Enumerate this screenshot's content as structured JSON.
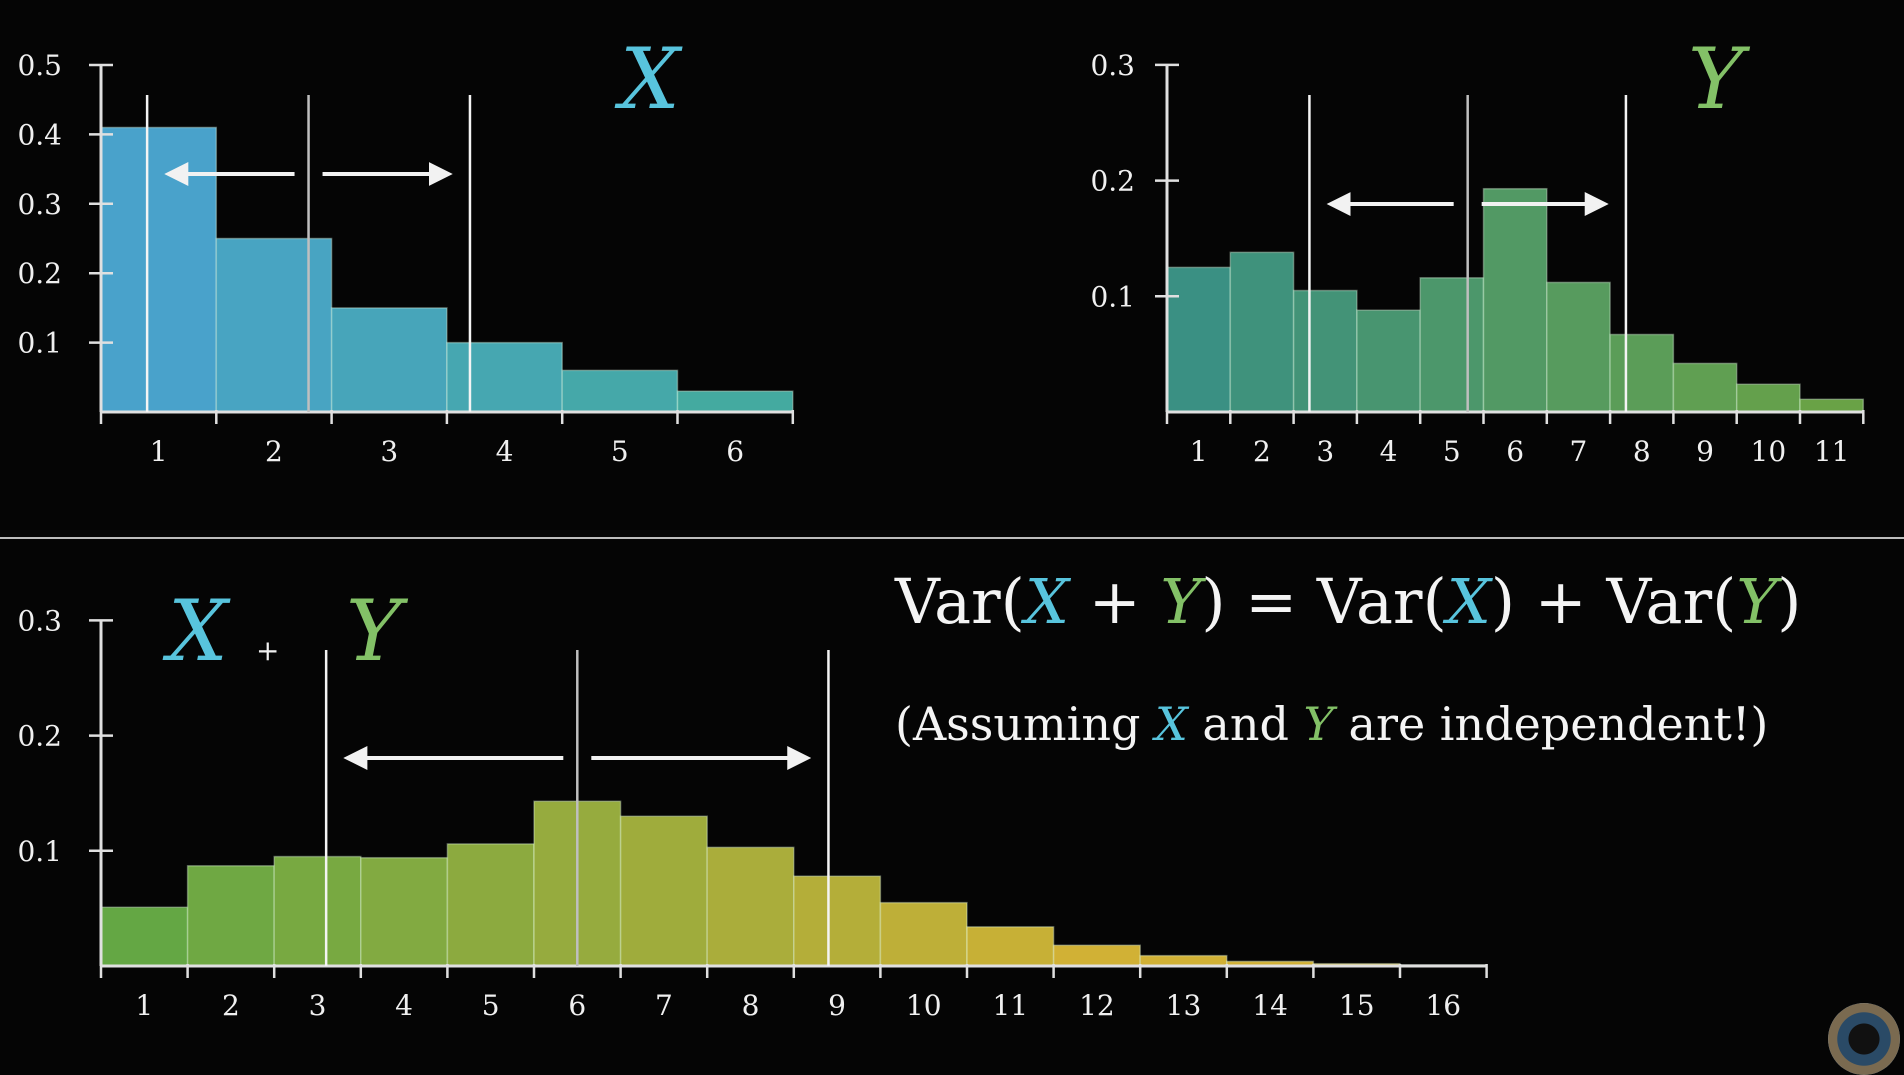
{
  "colors": {
    "x": "#58c4dd",
    "y": "#83c167",
    "sum_start": "#6db54a",
    "sum_end": "#e3c03a",
    "axis": "#e0e0e0"
  },
  "chart_data": [
    {
      "id": "x",
      "type": "bar",
      "title": "X",
      "categories": [
        "1",
        "2",
        "3",
        "4",
        "5",
        "6"
      ],
      "values": [
        0.41,
        0.25,
        0.15,
        0.1,
        0.06,
        0.03
      ],
      "y_ticks": [
        "0.1",
        "0.2",
        "0.3",
        "0.4",
        "0.5"
      ],
      "ylim": [
        0,
        0.5
      ],
      "mean_line": 2.3,
      "spread_lines": [
        0.9,
        3.7
      ]
    },
    {
      "id": "y",
      "type": "bar",
      "title": "Y",
      "categories": [
        "1",
        "2",
        "3",
        "4",
        "5",
        "6",
        "7",
        "8",
        "9",
        "10",
        "11"
      ],
      "values": [
        0.125,
        0.138,
        0.105,
        0.088,
        0.116,
        0.193,
        0.112,
        0.067,
        0.042,
        0.024,
        0.011
      ],
      "y_ticks": [
        "0.1",
        "0.2",
        "0.3"
      ],
      "ylim": [
        0,
        0.3
      ],
      "mean_line": 5.25,
      "spread_lines": [
        2.75,
        7.75
      ]
    },
    {
      "id": "sum",
      "type": "bar",
      "title": "X + Y",
      "categories": [
        "1",
        "2",
        "3",
        "4",
        "5",
        "6",
        "7",
        "8",
        "9",
        "10",
        "11",
        "12",
        "13",
        "14",
        "15",
        "16"
      ],
      "values": [
        0.051,
        0.087,
        0.095,
        0.094,
        0.106,
        0.143,
        0.13,
        0.103,
        0.078,
        0.055,
        0.034,
        0.018,
        0.009,
        0.004,
        0.002,
        0.001
      ],
      "y_ticks": [
        "0.1",
        "0.2",
        "0.3"
      ],
      "ylim": [
        0,
        0.3
      ],
      "mean_line": 6.0,
      "spread_lines": [
        3.1,
        8.9
      ]
    }
  ],
  "formula": {
    "var1": "Var(",
    "x1": "X",
    "plus1": " + ",
    "y1": "Y",
    "eq": ") = Var(",
    "x2": "X",
    "mid": ") + Var(",
    "y2": "Y",
    "end": ")"
  },
  "note": {
    "open": "(Assuming ",
    "x": "X",
    "and": " and ",
    "y": "Y",
    "rest": " are independent!)"
  },
  "labels": {
    "x": "X",
    "y": "Y",
    "sum_x": "X",
    "sum_plus": "+",
    "sum_y": "Y"
  }
}
